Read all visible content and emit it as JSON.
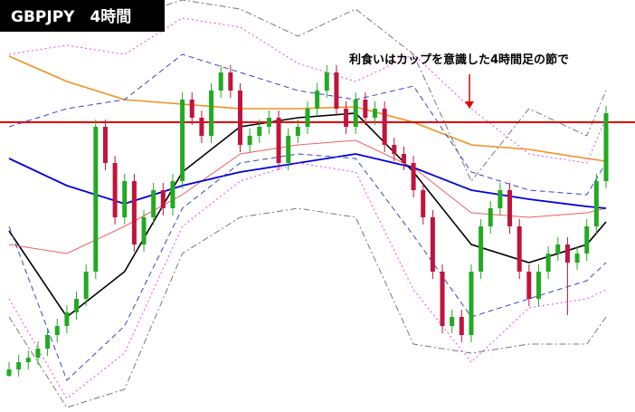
{
  "chart_data": {
    "type": "candlestick",
    "title": "GBPJPY　4時間",
    "annotation": "利食いはカップを意識した4時間足の節で",
    "ylim": [
      0,
      455
    ],
    "up_color": "#22aa22",
    "down_color": "#c0143c",
    "hline": 320,
    "hline_color": "#e00000",
    "candles": [
      [
        40,
        55,
        39,
        47
      ],
      [
        47,
        63,
        39,
        55
      ],
      [
        55,
        68,
        47,
        60
      ],
      [
        60,
        78,
        52,
        70
      ],
      [
        70,
        93,
        62,
        85
      ],
      [
        85,
        103,
        77,
        95
      ],
      [
        95,
        118,
        87,
        110
      ],
      [
        110,
        133,
        102,
        125
      ],
      [
        125,
        163,
        117,
        155
      ],
      [
        155,
        323,
        147,
        315
      ],
      [
        315,
        323,
        267,
        275
      ],
      [
        275,
        283,
        207,
        215
      ],
      [
        215,
        263,
        207,
        255
      ],
      [
        255,
        263,
        177,
        185
      ],
      [
        185,
        223,
        177,
        215
      ],
      [
        215,
        253,
        207,
        245
      ],
      [
        245,
        253,
        217,
        225
      ],
      [
        225,
        263,
        217,
        255
      ],
      [
        255,
        353,
        247,
        345
      ],
      [
        345,
        353,
        317,
        325
      ],
      [
        325,
        333,
        297,
        305
      ],
      [
        305,
        363,
        297,
        355
      ],
      [
        355,
        383,
        347,
        375
      ],
      [
        375,
        383,
        347,
        355
      ],
      [
        355,
        363,
        287,
        295
      ],
      [
        295,
        313,
        287,
        305
      ],
      [
        305,
        323,
        297,
        315
      ],
      [
        315,
        333,
        307,
        325
      ],
      [
        325,
        333,
        267,
        275
      ],
      [
        275,
        313,
        267,
        305
      ],
      [
        305,
        323,
        297,
        315
      ],
      [
        315,
        343,
        307,
        335
      ],
      [
        335,
        363,
        327,
        355
      ],
      [
        355,
        383,
        347,
        375
      ],
      [
        375,
        383,
        327,
        335
      ],
      [
        335,
        343,
        307,
        315
      ],
      [
        315,
        353,
        307,
        345
      ],
      [
        345,
        353,
        317,
        325
      ],
      [
        325,
        343,
        317,
        335
      ],
      [
        335,
        343,
        287,
        295
      ],
      [
        295,
        303,
        277,
        285
      ],
      [
        285,
        293,
        267,
        275
      ],
      [
        275,
        283,
        237,
        245
      ],
      [
        245,
        253,
        207,
        215
      ],
      [
        215,
        223,
        147,
        155
      ],
      [
        155,
        163,
        87,
        95
      ],
      [
        95,
        113,
        87,
        105
      ],
      [
        105,
        113,
        77,
        85
      ],
      [
        85,
        163,
        77,
        155
      ],
      [
        155,
        213,
        147,
        205
      ],
      [
        205,
        233,
        197,
        225
      ],
      [
        225,
        253,
        217,
        245
      ],
      [
        245,
        253,
        197,
        205
      ],
      [
        205,
        213,
        147,
        155
      ],
      [
        155,
        163,
        117,
        125
      ],
      [
        125,
        163,
        117,
        155
      ],
      [
        155,
        183,
        147,
        175
      ],
      [
        175,
        193,
        167,
        185
      ],
      [
        185,
        193,
        107,
        165
      ],
      [
        165,
        183,
        157,
        175
      ],
      [
        175,
        213,
        167,
        205
      ],
      [
        205,
        263,
        197,
        255
      ],
      [
        255,
        338,
        247,
        330
      ]
    ],
    "line_x": [
      0,
      6,
      12,
      18,
      24,
      30,
      36,
      42,
      48,
      54,
      60,
      62
    ],
    "series": [
      {
        "color": "#000000",
        "style": "solid",
        "width": 1.6,
        "values": [
          200,
          105,
          155,
          265,
          315,
          325,
          330,
          265,
          185,
          165,
          185,
          210
        ]
      },
      {
        "color": "#f06060",
        "style": "solid",
        "width": 1,
        "values": [
          185,
          175,
          205,
          240,
          285,
          295,
          300,
          270,
          220,
          215,
          220,
          225
        ]
      },
      {
        "color": "#0000dd",
        "style": "solid",
        "width": 1.8,
        "values": [
          280,
          250,
          230,
          250,
          265,
          275,
          285,
          270,
          245,
          235,
          227,
          225
        ]
      },
      {
        "color": "#f09020",
        "style": "solid",
        "width": 1.6,
        "values": [
          393,
          365,
          345,
          340,
          335,
          335,
          337,
          320,
          295,
          290,
          280,
          277
        ]
      },
      {
        "color": "#ee44ee",
        "style": "dotted",
        "width": 1,
        "values": [
          395,
          405,
          395,
          435,
          425,
          385,
          365,
          395,
          335,
          285,
          275,
          325
        ]
      },
      {
        "color": "#ee44ee",
        "style": "dotted",
        "width": 1,
        "values": [
          125,
          15,
          65,
          205,
          255,
          275,
          265,
          135,
          55,
          115,
          125,
          135
        ]
      },
      {
        "color": "#3344cc",
        "style": "dashed",
        "width": 1,
        "values": [
          315,
          335,
          345,
          395,
          375,
          355,
          345,
          360,
          265,
          245,
          240,
          275
        ]
      },
      {
        "color": "#3344cc",
        "style": "dashed",
        "width": 1,
        "values": [
          205,
          35,
          95,
          225,
          275,
          285,
          280,
          195,
          105,
          125,
          145,
          165
        ]
      },
      {
        "color": "#777777",
        "style": "dashdot",
        "width": 1,
        "values": [
          425,
          445,
          435,
          455,
          445,
          415,
          445,
          395,
          255,
          335,
          305,
          355
        ]
      },
      {
        "color": "#777777",
        "style": "dashdot",
        "width": 1,
        "values": [
          105,
          5,
          25,
          175,
          215,
          225,
          215,
          75,
          65,
          75,
          75,
          105
        ]
      }
    ]
  }
}
